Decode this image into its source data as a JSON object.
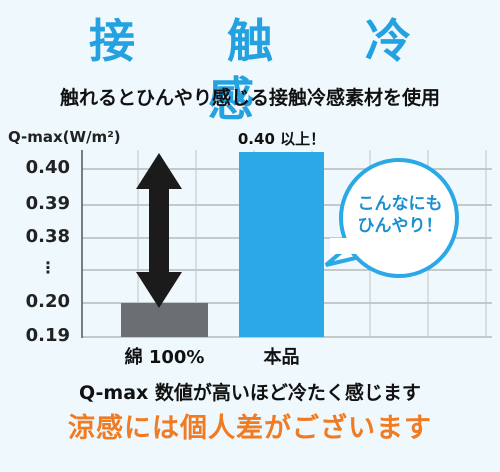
{
  "header": {
    "title": "接 触 冷 感",
    "subtitle": "触れるとひんやり感じる接触冷感素材を使用"
  },
  "chart_data": {
    "type": "bar",
    "title": "",
    "ylabel": "Q-max(W/m²)",
    "y_ticks": [
      "0.40",
      "0.39",
      "0.38",
      "⋮",
      "0.20",
      "0.19"
    ],
    "categories": [
      "綿 100%",
      "本品"
    ],
    "values": [
      0.2,
      0.4
    ],
    "ylim_note": "broken axis",
    "series": [
      {
        "values": [
          0.2,
          0.4
        ]
      }
    ],
    "bar_annotation": "0.40 以上！",
    "bubble": "こんなにも\nひんやり！",
    "colors": {
      "cotton": "#6b6e73",
      "product": "#2aa9e6",
      "accent": "#23a1e0"
    },
    "grid": true
  },
  "notes": {
    "line1": "Q-max 数値が高いほど冷たく感じます",
    "line2": "涼感には個人差がございます"
  }
}
